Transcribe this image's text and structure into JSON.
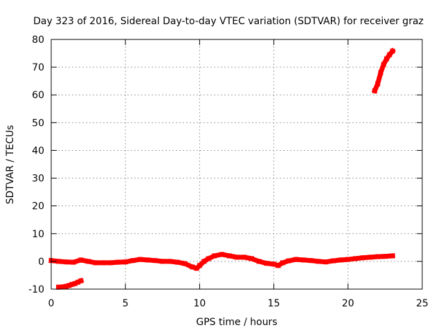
{
  "chart_data": {
    "type": "scatter",
    "title": "Day 323 of 2016, Sidereal Day-to-day VTEC variation (SDTVAR) for receiver graz",
    "xlabel": "GPS time / hours",
    "ylabel": "SDTVAR / TECUs",
    "xlim": [
      0,
      25
    ],
    "ylim": [
      -10,
      80
    ],
    "x_ticks": [
      "0",
      "5",
      "10",
      "15",
      "20",
      "25"
    ],
    "y_ticks": [
      "-10",
      "0",
      "10",
      "20",
      "30",
      "40",
      "50",
      "60",
      "70",
      "80"
    ],
    "grid": true,
    "color": "#ff0000",
    "series": [
      {
        "x": [
          0,
          0.5,
          1,
          1.5,
          2,
          2.5,
          3,
          3.5,
          4,
          4.5,
          5,
          5.5,
          6,
          6.5,
          7,
          7.5,
          8,
          8.5,
          9,
          9.5,
          9.8,
          10,
          10.3,
          10.6,
          11,
          11.5,
          12,
          12.5,
          13,
          13.5,
          14,
          14.5,
          15,
          15.3,
          15.6,
          16,
          16.5,
          17,
          17.5,
          18,
          18.5,
          19,
          19.5,
          20,
          20.5,
          21,
          21.5,
          22,
          22.5,
          23
        ],
        "y": [
          0.3,
          0,
          -0.2,
          -0.3,
          0.5,
          0,
          -0.5,
          -0.5,
          -0.5,
          -0.3,
          -0.2,
          0.3,
          0.7,
          0.5,
          0.3,
          0,
          0,
          -0.3,
          -0.8,
          -2,
          -2.5,
          -1.5,
          0,
          1,
          2,
          2.5,
          2,
          1.5,
          1.5,
          1,
          0,
          -0.7,
          -1,
          -1.5,
          -0.5,
          0.2,
          0.7,
          0.5,
          0.3,
          0,
          -0.2,
          0.2,
          0.5,
          0.7,
          1,
          1.3,
          1.5,
          1.7,
          1.8,
          2
        ]
      },
      {
        "x": [
          0.5,
          0.8,
          1,
          1.2,
          1.4,
          1.6,
          1.8,
          2
        ],
        "y": [
          -9.3,
          -9.2,
          -9,
          -8.7,
          -8.3,
          -8,
          -7.5,
          -7
        ]
      },
      {
        "x": [
          21.8,
          22,
          22.2,
          22.4,
          22.6,
          22.8,
          23
        ],
        "y": [
          61.5,
          64,
          68,
          71,
          73,
          74.5,
          75.8
        ]
      }
    ]
  }
}
